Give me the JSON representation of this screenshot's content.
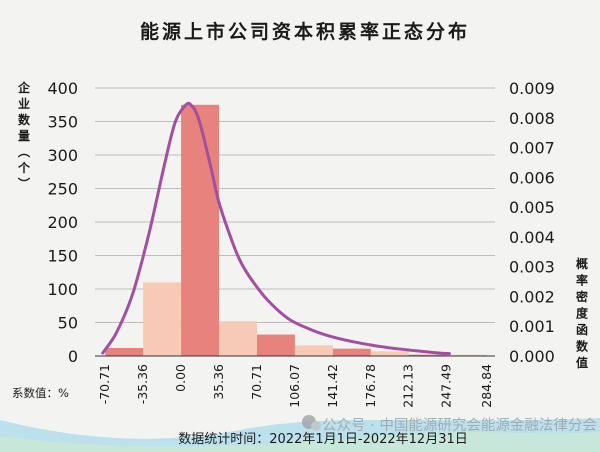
{
  "colors": {
    "background": "#f3f4f1",
    "bar_dark": "#e8827c",
    "bar_light": "#f7c9b7",
    "curve": "#a24fa1",
    "grid": "#bdbdbd",
    "text": "#1b1b1b"
  },
  "footer": {
    "source_note": "数据统计时间：2022年1月1日-2022年12月31日",
    "watermark": "公众号 · 中国能源研究会能源金融法律分会",
    "watermark_icon": "wechat-icon"
  },
  "chart_data": {
    "type": "bar",
    "title": "能源上市公司资本积累率正态分布",
    "ylabel": "企业数量（个）",
    "y2label": "概率密度函数值",
    "xlabel": "系数值：%",
    "x_ticks": [
      "-70.71",
      "-35.36",
      "0.00",
      "35.36",
      "70.71",
      "106.07",
      "141.42",
      "176.78",
      "212.13",
      "247.49",
      "284.84"
    ],
    "ylim": [
      0,
      400
    ],
    "y_ticks": [
      0,
      50,
      100,
      150,
      200,
      250,
      300,
      350,
      400
    ],
    "y2lim": [
      0,
      0.009
    ],
    "y2_ticks": [
      "0.000",
      "0.001",
      "0.002",
      "0.003",
      "0.004",
      "0.005",
      "0.006",
      "0.007",
      "0.008",
      "0.009"
    ],
    "grid": true,
    "bars": [
      {
        "from": -70.71,
        "to": -35.36,
        "value": 12,
        "shade": "dark"
      },
      {
        "from": -35.36,
        "to": 0.0,
        "value": 110,
        "shade": "light"
      },
      {
        "from": 0.0,
        "to": 35.36,
        "value": 375,
        "shade": "dark"
      },
      {
        "from": 35.36,
        "to": 70.71,
        "value": 52,
        "shade": "light"
      },
      {
        "from": 70.71,
        "to": 106.07,
        "value": 32,
        "shade": "dark"
      },
      {
        "from": 106.07,
        "to": 141.42,
        "value": 16,
        "shade": "light"
      },
      {
        "from": 141.42,
        "to": 176.78,
        "value": 11,
        "shade": "dark"
      },
      {
        "from": 176.78,
        "to": 212.13,
        "value": 7,
        "shade": "light"
      },
      {
        "from": 212.13,
        "to": 247.49,
        "value": 2,
        "shade": "dark"
      },
      {
        "from": 247.49,
        "to": 284.84,
        "value": 2,
        "shade": "light"
      }
    ],
    "density_curve": {
      "x": [
        -73,
        -60,
        -45,
        -30,
        -15,
        -5,
        5,
        10,
        15,
        20,
        28,
        35,
        45,
        55,
        65,
        80,
        100,
        120,
        140,
        160,
        180,
        200,
        220,
        240,
        250
      ],
      "y": [
        0.0001,
        0.0008,
        0.0021,
        0.0041,
        0.0065,
        0.0079,
        0.00845,
        0.0084,
        0.0081,
        0.0075,
        0.0063,
        0.0052,
        0.0041,
        0.0032,
        0.0026,
        0.0019,
        0.00125,
        0.0009,
        0.00065,
        0.00048,
        0.00035,
        0.00025,
        0.00017,
        0.0001,
        8e-05
      ]
    }
  }
}
